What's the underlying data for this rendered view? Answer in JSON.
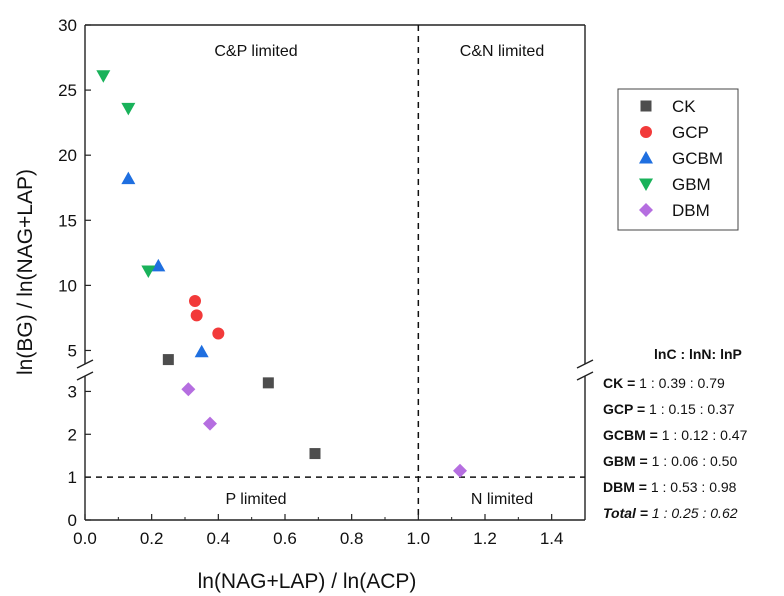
{
  "chart_data": {
    "type": "scatter",
    "title": "",
    "xlabel": "ln(NAG+LAP) / ln(ACP)",
    "ylabel": "ln(BG) / ln(NAG+LAP)",
    "xlim": [
      0,
      1.5
    ],
    "ylim_lower": [
      0,
      3.5
    ],
    "ylim_upper": [
      3.5,
      30
    ],
    "x_ticks": [
      "0.0",
      "0.2",
      "0.4",
      "0.6",
      "0.8",
      "1.0",
      "1.2",
      "1.4"
    ],
    "y_ticks_lower": [
      "0",
      "1",
      "2",
      "3"
    ],
    "y_ticks_upper": [
      "5",
      "10",
      "15",
      "20",
      "25",
      "30"
    ],
    "axis_break": true,
    "grid": false,
    "reference_lines": {
      "x": 1.0,
      "y": 1.0,
      "style": "dashed"
    },
    "region_labels": [
      "C&P limited",
      "C&N limited",
      "P limited",
      "N limited"
    ],
    "legend_position": "right",
    "series": [
      {
        "name": "CK",
        "marker": "square",
        "color": "#4d4d4d",
        "points": [
          [
            0.25,
            4.3
          ],
          [
            0.55,
            3.2
          ],
          [
            0.69,
            1.55
          ]
        ]
      },
      {
        "name": "GCP",
        "marker": "circle",
        "color": "#f23a3a",
        "points": [
          [
            0.33,
            8.8
          ],
          [
            0.335,
            7.7
          ],
          [
            0.4,
            6.3
          ]
        ]
      },
      {
        "name": "GCBM",
        "marker": "triangle-up",
        "color": "#1f6fe0",
        "points": [
          [
            0.13,
            18.2
          ],
          [
            0.22,
            11.5
          ],
          [
            0.35,
            4.9
          ]
        ]
      },
      {
        "name": "GBM",
        "marker": "triangle-down",
        "color": "#19b25a",
        "points": [
          [
            0.055,
            26.1
          ],
          [
            0.13,
            23.6
          ],
          [
            0.19,
            11.1
          ]
        ]
      },
      {
        "name": "DBM",
        "marker": "diamond",
        "color": "#b56ee0",
        "points": [
          [
            0.31,
            3.05
          ],
          [
            0.375,
            2.25
          ],
          [
            1.125,
            1.15
          ]
        ]
      }
    ],
    "ratio_table": {
      "header": "lnC : lnN: lnP",
      "rows": [
        {
          "label": "CK =",
          "value": " 1 : 0.39 : 0.79"
        },
        {
          "label": "GCP =",
          "value": " 1 : 0.15 : 0.37"
        },
        {
          "label": "GCBM =",
          "value": " 1 : 0.12 : 0.47"
        },
        {
          "label": "GBM =",
          "value": " 1 : 0.06 : 0.50"
        },
        {
          "label": "DBM =",
          "value": " 1 : 0.53 : 0.98"
        }
      ],
      "total": {
        "label": "Total =",
        "value": " 1 : 0.25 : 0.62"
      }
    }
  }
}
